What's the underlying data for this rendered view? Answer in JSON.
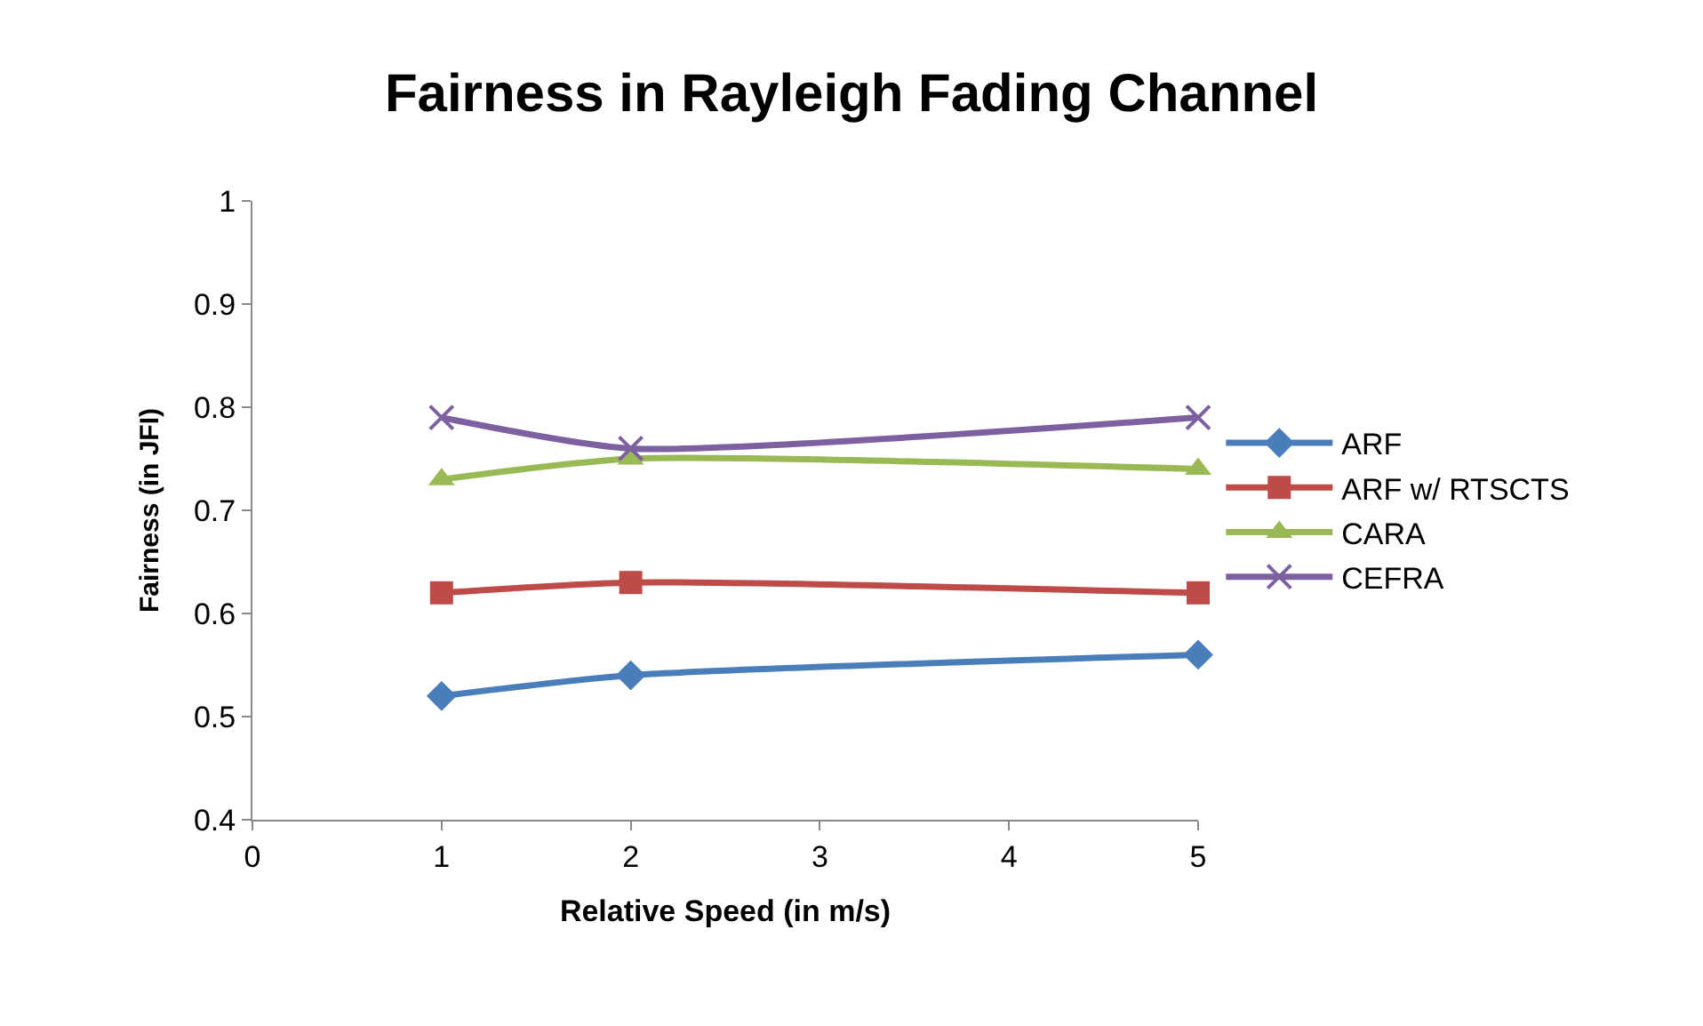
{
  "chart_data": {
    "type": "line",
    "title": "Fairness in Rayleigh Fading Channel",
    "xlabel": "Relative Speed (in m/s)",
    "ylabel": "Fairness (in JFI)",
    "x": [
      1,
      2,
      5
    ],
    "series": [
      {
        "name": "ARF",
        "color": "#4a7ebb",
        "marker": "diamond",
        "values": [
          0.52,
          0.54,
          0.56
        ]
      },
      {
        "name": "ARF w/ RTSCTS",
        "color": "#be4b48",
        "marker": "square",
        "values": [
          0.62,
          0.63,
          0.62
        ]
      },
      {
        "name": "CARA",
        "color": "#98b954",
        "marker": "triangle",
        "values": [
          0.73,
          0.75,
          0.74
        ]
      },
      {
        "name": "CEFRA",
        "color": "#7d60a0",
        "marker": "cross",
        "values": [
          0.79,
          0.76,
          0.79
        ]
      }
    ],
    "xlim": [
      0,
      5
    ],
    "xticks": [
      0,
      1,
      2,
      3,
      4,
      5
    ],
    "ylim": [
      0.4,
      1
    ],
    "yticks": [
      {
        "value": 0.4,
        "label": "0.4"
      },
      {
        "value": 0.5,
        "label": "0.5"
      },
      {
        "value": 0.6,
        "label": "0.6"
      },
      {
        "value": 0.7,
        "label": "0.7"
      },
      {
        "value": 0.8,
        "label": "0.8"
      },
      {
        "value": 0.9,
        "label": "0.9"
      },
      {
        "value": 1,
        "label": "1"
      }
    ],
    "legend": "right",
    "line_style": "solid"
  }
}
